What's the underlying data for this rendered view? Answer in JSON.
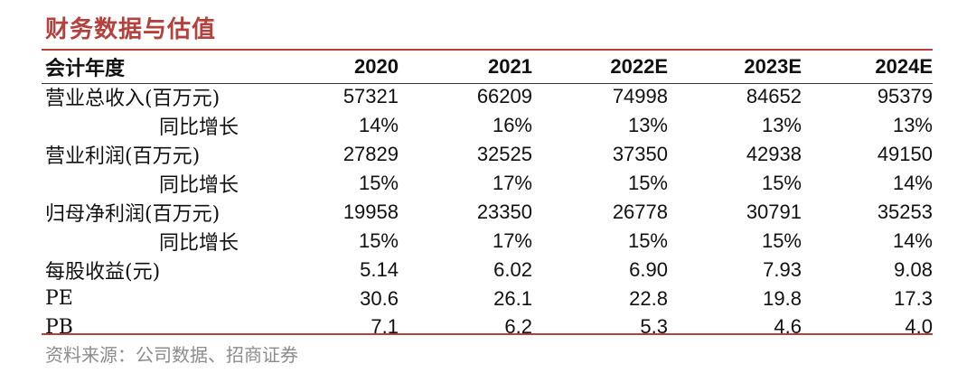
{
  "title": "财务数据与估值",
  "header": {
    "label": "会计年度",
    "years": [
      "2020",
      "2021",
      "2022E",
      "2023E",
      "2024E"
    ]
  },
  "rows": [
    {
      "label": "营业总收入(百万元)",
      "indent": false,
      "values": [
        "57321",
        "66209",
        "74998",
        "84652",
        "95379"
      ]
    },
    {
      "label": "同比增长",
      "indent": true,
      "values": [
        "14%",
        "16%",
        "13%",
        "13%",
        "13%"
      ]
    },
    {
      "label": "营业利润(百万元)",
      "indent": false,
      "values": [
        "27829",
        "32525",
        "37350",
        "42938",
        "49150"
      ]
    },
    {
      "label": "同比增长",
      "indent": true,
      "values": [
        "15%",
        "17%",
        "15%",
        "15%",
        "14%"
      ]
    },
    {
      "label": "归母净利润(百万元)",
      "indent": false,
      "values": [
        "19958",
        "23350",
        "26778",
        "30791",
        "35253"
      ]
    },
    {
      "label": "同比增长",
      "indent": true,
      "values": [
        "15%",
        "17%",
        "15%",
        "15%",
        "14%"
      ]
    },
    {
      "label": "每股收益(元)",
      "indent": false,
      "values": [
        "5.14",
        "6.02",
        "6.90",
        "7.93",
        "9.08"
      ]
    },
    {
      "label": "PE",
      "indent": false,
      "values": [
        "30.6",
        "26.1",
        "22.8",
        "19.8",
        "17.3"
      ]
    },
    {
      "label": "PB",
      "indent": false,
      "values": [
        "7.1",
        "6.2",
        "5.3",
        "4.6",
        "4.0"
      ]
    }
  ],
  "source": "资料来源：公司数据、招商证券",
  "colors": {
    "accent": "#b5403c",
    "source_text": "#8c8c8c"
  }
}
